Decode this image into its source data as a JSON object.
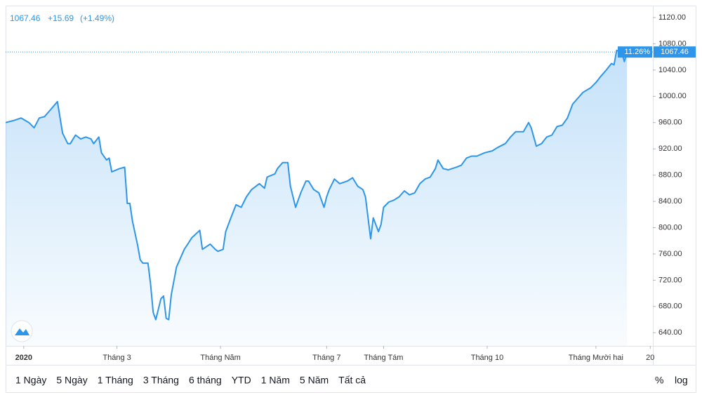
{
  "chart_data": {
    "type": "area",
    "header": {
      "price": "1067.46",
      "change": "+15.69",
      "change_pct": "(+1.49%)"
    },
    "last_label": "1067.46",
    "pct_badge": "11.26%",
    "color": "#2e96ea",
    "x": [
      0,
      3,
      6,
      9,
      11,
      13,
      15,
      17,
      20,
      22,
      24,
      25,
      27,
      29,
      31,
      33,
      34,
      36,
      37,
      39,
      40,
      41,
      44,
      46,
      47,
      48,
      49,
      51,
      52,
      53,
      55,
      56,
      57,
      58,
      60,
      61,
      62,
      63,
      64,
      66,
      67,
      69,
      70,
      72,
      75,
      76,
      79,
      81,
      82,
      84,
      85,
      87,
      89,
      91,
      93,
      95,
      98,
      100,
      101,
      104,
      105,
      107,
      109,
      110,
      112,
      114,
      116,
      117,
      119,
      121,
      123,
      124,
      125,
      127,
      129,
      132,
      134,
      136,
      138,
      139,
      141,
      142,
      144,
      145,
      146,
      148,
      150,
      152,
      154,
      156,
      158,
      160,
      162,
      164,
      166,
      167,
      169,
      171,
      174,
      176,
      178,
      180,
      182,
      185,
      188,
      190,
      193,
      195,
      197,
      200,
      202,
      203,
      205,
      207,
      209,
      211,
      213,
      215,
      217,
      219,
      221,
      223,
      226,
      228,
      230,
      232,
      234,
      235,
      236,
      238,
      239,
      240
    ],
    "values": [
      960,
      963,
      967,
      960,
      952,
      967,
      969,
      978,
      992,
      944,
      928,
      928,
      941,
      935,
      938,
      935,
      928,
      938,
      914,
      903,
      906,
      885,
      890,
      892,
      837,
      837,
      810,
      773,
      751,
      746,
      746,
      714,
      671,
      660,
      692,
      696,
      662,
      660,
      698,
      740,
      749,
      767,
      773,
      785,
      796,
      767,
      775,
      767,
      764,
      767,
      794,
      815,
      835,
      831,
      847,
      858,
      867,
      860,
      877,
      882,
      890,
      899,
      899,
      863,
      831,
      853,
      871,
      871,
      858,
      853,
      831,
      847,
      858,
      874,
      867,
      871,
      876,
      863,
      858,
      847,
      783,
      815,
      794,
      805,
      831,
      839,
      842,
      847,
      856,
      850,
      853,
      867,
      874,
      877,
      890,
      903,
      890,
      888,
      892,
      895,
      906,
      909,
      909,
      914,
      917,
      922,
      928,
      938,
      946,
      946,
      960,
      952,
      924,
      928,
      938,
      941,
      954,
      956,
      967,
      988,
      997,
      1006,
      1013,
      1021,
      1031,
      1040,
      1050,
      1048,
      1070,
      1067,
      1053,
      1067.46
    ],
    "xlim": [
      0,
      250
    ],
    "xticks": [
      {
        "value": 7,
        "label": "2020"
      },
      {
        "value": 43,
        "label": "Tháng 3"
      },
      {
        "value": 83,
        "label": "Tháng Năm"
      },
      {
        "value": 124,
        "label": "Tháng 7"
      },
      {
        "value": 146,
        "label": "Tháng Tám"
      },
      {
        "value": 186,
        "label": "Tháng 10"
      },
      {
        "value": 228,
        "label": "Tháng Mười hai"
      },
      {
        "value": 249,
        "label": "20"
      }
    ],
    "ylim": [
      620,
      1136
    ],
    "yticks": [
      {
        "value": 640,
        "label": "640.00"
      },
      {
        "value": 680,
        "label": "680.00"
      },
      {
        "value": 720,
        "label": "720.00"
      },
      {
        "value": 760,
        "label": "760.00"
      },
      {
        "value": 800,
        "label": "800.00"
      },
      {
        "value": 840,
        "label": "840.00"
      },
      {
        "value": 880,
        "label": "880.00"
      },
      {
        "value": 920,
        "label": "920.00"
      },
      {
        "value": 960,
        "label": "960.00"
      },
      {
        "value": 1000,
        "label": "1000.00"
      },
      {
        "value": 1040,
        "label": "1040.00"
      },
      {
        "value": 1080,
        "label": "1080.00"
      },
      {
        "value": 1120,
        "label": "1120.00"
      }
    ],
    "ranges": [
      "1 Ngày",
      "5 Ngày",
      "1 Tháng",
      "3 Tháng",
      "6 tháng",
      "YTD",
      "1 Năm",
      "5 Năm",
      "Tất cả"
    ],
    "scale_options": [
      "%",
      "log"
    ]
  }
}
